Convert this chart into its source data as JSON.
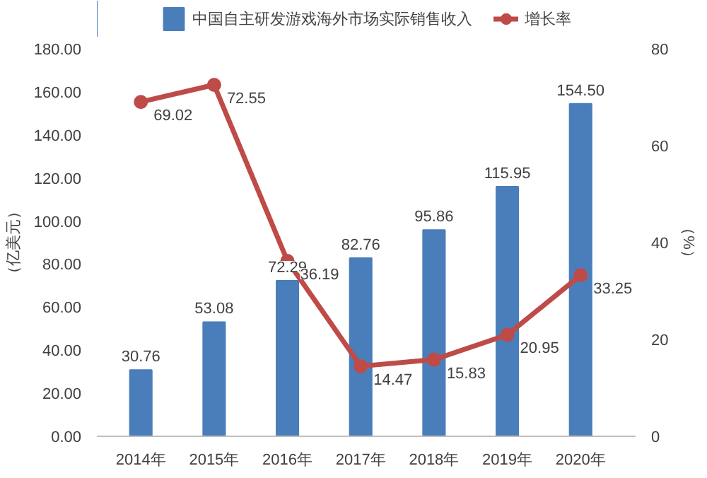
{
  "chart_data": {
    "type": "bar",
    "categories": [
      "2014年",
      "2015年",
      "2016年",
      "2017年",
      "2018年",
      "2019年",
      "2020年"
    ],
    "ylabel": "（亿美元）",
    "y2label": "（%）",
    "series": [
      {
        "name": "中国自主研发游戏海外市场实际销售收入",
        "color": "#4a7ebb",
        "values": [
          30.76,
          53.08,
          72.29,
          82.76,
          95.86,
          115.95,
          154.5
        ],
        "value_labels": [
          "30.76",
          "53.08",
          "72.29",
          "82.76",
          "95.86",
          "115.95",
          "154.50"
        ]
      },
      {
        "name": "增长率",
        "color": "#be4b48",
        "type": "line",
        "axis": "y2",
        "marker": "circle",
        "values": [
          69.02,
          72.55,
          36.19,
          14.47,
          15.83,
          20.95,
          33.25
        ],
        "value_labels": [
          "69.02",
          "72.55",
          "36.19",
          "14.47",
          "15.83",
          "20.95",
          "33.25"
        ]
      }
    ],
    "ylim": [
      0,
      180
    ],
    "yticks": [
      {
        "value": 0,
        "label": "0.00"
      },
      {
        "value": 20,
        "label": "20.00"
      },
      {
        "value": 40,
        "label": "40.00"
      },
      {
        "value": 60,
        "label": "60.00"
      },
      {
        "value": 80,
        "label": "80.00"
      },
      {
        "value": 100,
        "label": "100.00"
      },
      {
        "value": 120,
        "label": "120.00"
      },
      {
        "value": 140,
        "label": "140.00"
      },
      {
        "value": 160,
        "label": "160.00"
      },
      {
        "value": 180,
        "label": "180.00"
      }
    ],
    "y2lim": [
      0,
      80
    ],
    "y2ticks": [
      0,
      20,
      40,
      60,
      80
    ],
    "data_labels": true,
    "legend": "top",
    "grid": false
  }
}
